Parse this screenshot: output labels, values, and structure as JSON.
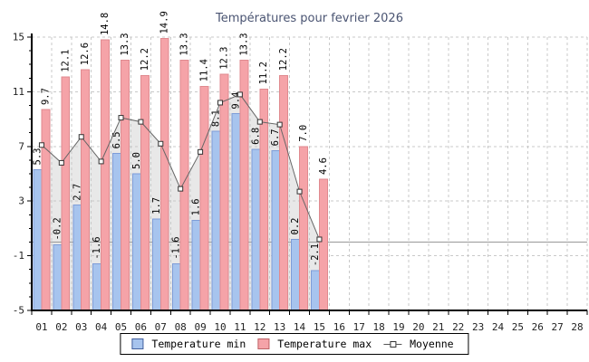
{
  "title": "Températures pour fevrier 2026",
  "legend": {
    "min_label": "Temperature min",
    "max_label": "Temperature max",
    "moyenne_label": "Moyenne"
  },
  "colors": {
    "min_bar_fill": "#A7C4EE",
    "min_bar_border": "#7E9DD8",
    "max_bar_fill": "#F5A3A8",
    "max_bar_border": "#E08A8F",
    "min_swatch_border": "#44609E",
    "max_swatch_border": "#BE6468",
    "moyenne_line": "#666666",
    "moyenne_area": "#E8E8E8",
    "marker_fill": "#FFFFFF",
    "marker_border": "#333333",
    "zero_line": "#999999",
    "grid": "#C9C9C9",
    "axis": "#000000",
    "title": "#4A5472",
    "tick_label": "#222222",
    "value_label": "#000000"
  },
  "chart_data": {
    "type": "bar",
    "title": "Températures pour fevrier 2026",
    "categories": [
      "01",
      "02",
      "03",
      "04",
      "05",
      "06",
      "07",
      "08",
      "09",
      "10",
      "11",
      "12",
      "13",
      "14",
      "15",
      "16",
      "17",
      "18",
      "19",
      "20",
      "21",
      "22",
      "23",
      "24",
      "25",
      "26",
      "27",
      "28"
    ],
    "series": [
      {
        "name": "Temperature min",
        "type": "bar",
        "values": [
          5.3,
          -0.2,
          2.7,
          -1.6,
          6.5,
          5.0,
          1.7,
          -1.6,
          1.6,
          8.1,
          9.4,
          6.8,
          6.7,
          0.2,
          -2.1
        ]
      },
      {
        "name": "Temperature max",
        "type": "bar",
        "values": [
          9.7,
          12.1,
          12.6,
          14.8,
          13.3,
          12.2,
          14.9,
          13.3,
          11.4,
          12.3,
          13.3,
          11.2,
          12.2,
          7.0,
          4.6
        ]
      },
      {
        "name": "Moyenne",
        "type": "line-with-area",
        "values": [
          7.1,
          5.8,
          7.7,
          5.9,
          9.1,
          8.8,
          7.2,
          3.9,
          6.6,
          10.2,
          10.8,
          8.8,
          8.6,
          3.7,
          0.2
        ]
      }
    ],
    "ylim": [
      -5,
      15
    ],
    "yticks": [
      -5,
      -1,
      3,
      7,
      11,
      15
    ],
    "minor_tick_step": 1,
    "grid": true,
    "zero_line": true,
    "bars_anchored_at": -5,
    "value_labels": "rotated-90-above-bars",
    "legend_position": "bottom-center"
  }
}
